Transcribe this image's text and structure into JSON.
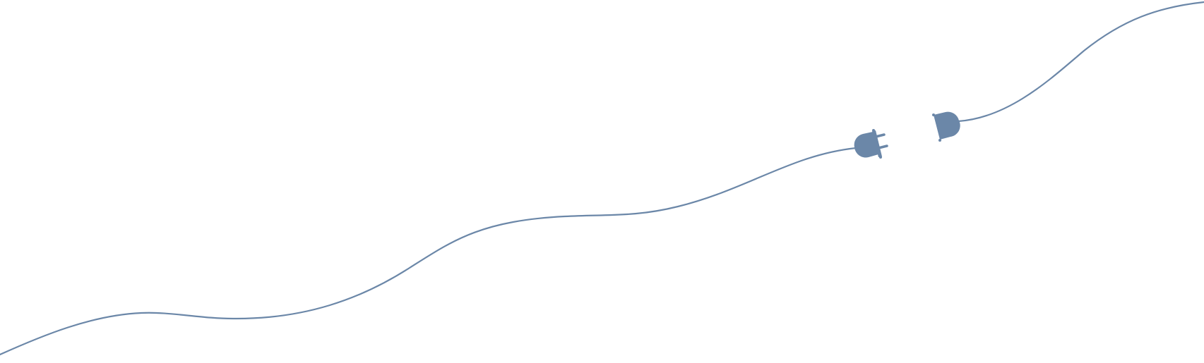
{
  "illustration": {
    "description_icons": [
      "power-cable-icon",
      "plug-icon",
      "socket-icon"
    ],
    "color": "#6b87a8",
    "state": "disconnected"
  }
}
